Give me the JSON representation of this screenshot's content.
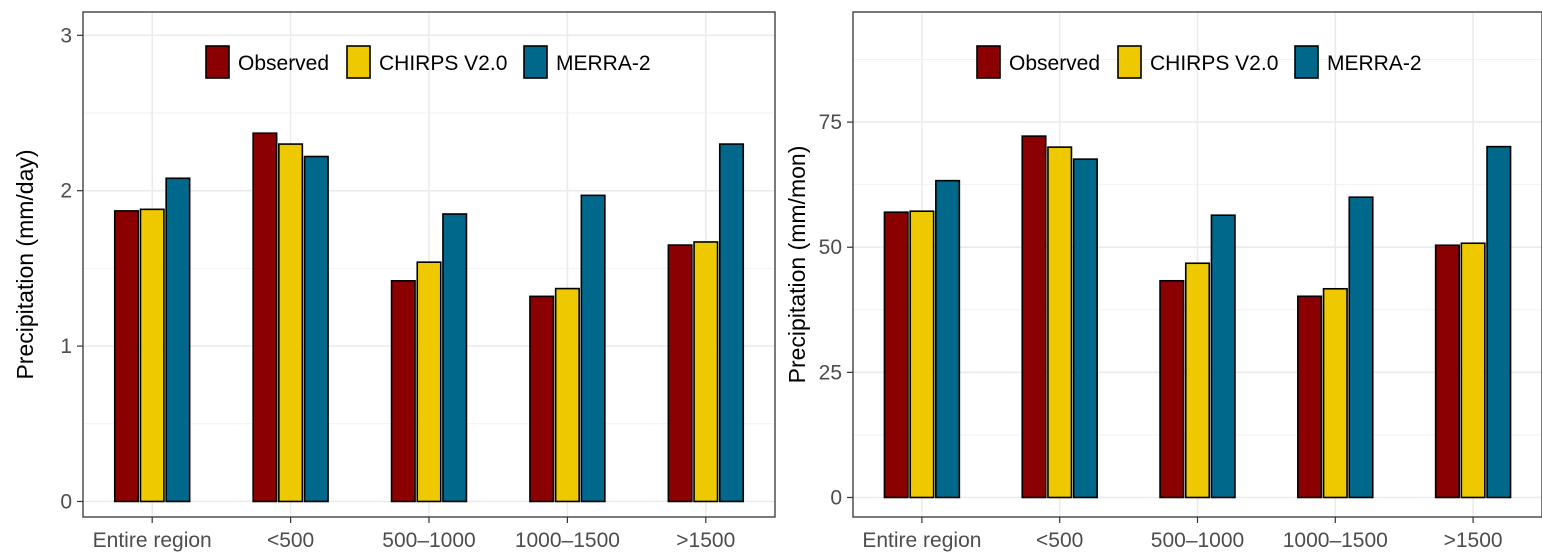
{
  "legend": [
    {
      "name": "Observed",
      "color": "#8b0000"
    },
    {
      "name": "CHIRPS V2.0",
      "color": "#eec900"
    },
    {
      "name": "MERRA-2",
      "color": "#00688b"
    }
  ],
  "chart_data": [
    {
      "type": "bar",
      "title": "",
      "xlabel": "",
      "ylabel": "Precipitation (mm/day)",
      "categories": [
        "Entire region",
        "<500",
        "500–1000",
        "1000–1500",
        ">1500"
      ],
      "series": [
        {
          "name": "Observed",
          "color": "#8b0000",
          "values": [
            1.87,
            2.37,
            1.42,
            1.32,
            1.65
          ]
        },
        {
          "name": "CHIRPS V2.0",
          "color": "#eec900",
          "values": [
            1.88,
            2.3,
            1.54,
            1.37,
            1.67
          ]
        },
        {
          "name": "MERRA-2",
          "color": "#00688b",
          "values": [
            2.08,
            2.22,
            1.85,
            1.97,
            2.3
          ]
        }
      ],
      "ylim": [
        -0.1,
        3.15
      ],
      "yticks": [
        0,
        1,
        2,
        3
      ],
      "grid": true,
      "legend_position": "top-center"
    },
    {
      "type": "bar",
      "title": "",
      "xlabel": "",
      "ylabel": "Precipitation (mm/mon)",
      "categories": [
        "Entire region",
        "<500",
        "500–1000",
        "1000–1500",
        ">1500"
      ],
      "series": [
        {
          "name": "Observed",
          "color": "#8b0000",
          "values": [
            57.0,
            72.2,
            43.3,
            40.2,
            50.4
          ]
        },
        {
          "name": "CHIRPS V2.0",
          "color": "#eec900",
          "values": [
            57.2,
            70.0,
            46.8,
            41.7,
            50.8
          ]
        },
        {
          "name": "MERRA-2",
          "color": "#00688b",
          "values": [
            63.3,
            67.6,
            56.4,
            60.0,
            70.1
          ]
        }
      ],
      "ylim": [
        -3.9,
        97
      ],
      "yticks": [
        0,
        25,
        50,
        75
      ],
      "grid": true,
      "legend_position": "top-center"
    }
  ]
}
